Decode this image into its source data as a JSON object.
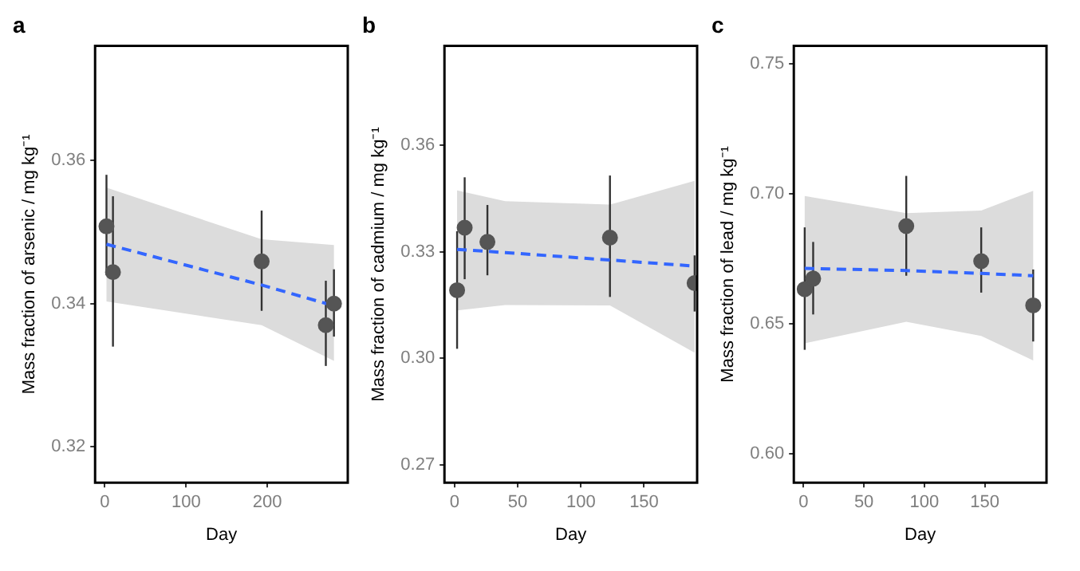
{
  "chart_data": [
    {
      "type": "scatter",
      "title": "a",
      "xlabel": "Day",
      "ylabel": "Mass fraction of arsenic / mg kg⁻¹",
      "xlim": [
        -12,
        299
      ],
      "xticks": [
        0,
        100,
        200
      ],
      "ylim": [
        0.315,
        0.376
      ],
      "yticks": [
        {
          "value": 0.32,
          "label": "0.32"
        },
        {
          "value": 0.34,
          "label": "0.34"
        },
        {
          "value": 0.36,
          "label": "0.36"
        }
      ],
      "series": [
        {
          "marker": "circle",
          "color": "#555555",
          "x": [
            2,
            10,
            193,
            272,
            282
          ],
          "values": [
            0.3508,
            0.3444,
            0.3459,
            0.337,
            0.34
          ],
          "errors": [
            [
              0.344,
              0.358
            ],
            [
              0.334,
              0.355
            ],
            [
              0.339,
              0.353
            ],
            [
              0.3313,
              0.3432
            ],
            [
              0.3354,
              0.3448
            ]
          ]
        },
        {
          "type": "line",
          "marker": "none",
          "line_style": "dashed",
          "color": "#3366ff",
          "x": [
            2,
            193,
            282
          ],
          "values": [
            0.3483,
            0.3426,
            0.3397
          ],
          "lower": [
            0.3403,
            0.337,
            0.332
          ],
          "upper": [
            0.3562,
            0.349,
            0.3482
          ]
        }
      ]
    },
    {
      "type": "scatter",
      "title": "b",
      "xlabel": "Day",
      "ylabel": "Mass fraction of cadmium / mg kg⁻¹",
      "xlim": [
        -8,
        192
      ],
      "xticks": [
        0,
        50,
        100,
        150
      ],
      "ylim": [
        0.265,
        0.388
      ],
      "yticks": [
        {
          "value": 0.27,
          "label": "0.27"
        },
        {
          "value": 0.3,
          "label": "0.30"
        },
        {
          "value": 0.33,
          "label": "0.33"
        },
        {
          "value": 0.36,
          "label": "0.36"
        }
      ],
      "series": [
        {
          "marker": "circle",
          "color": "#555555",
          "x": [
            2,
            8,
            26,
            123,
            190
          ],
          "values": [
            0.3192,
            0.3368,
            0.3328,
            0.334,
            0.3212
          ],
          "errors": [
            [
              0.3027,
              0.3358
            ],
            [
              0.3223,
              0.351
            ],
            [
              0.3234,
              0.3432
            ],
            [
              0.3173,
              0.3515
            ],
            [
              0.3132,
              0.329
            ]
          ]
        },
        {
          "type": "line",
          "marker": "none",
          "line_style": "dashed",
          "color": "#3366ff",
          "x": [
            2,
            40,
            123,
            190
          ],
          "values": [
            0.3307,
            0.3298,
            0.3277,
            0.326
          ],
          "lower": [
            0.3135,
            0.315,
            0.3149,
            0.3016
          ],
          "upper": [
            0.3473,
            0.3443,
            0.3433,
            0.35
          ]
        }
      ]
    },
    {
      "type": "scatter",
      "title": "c",
      "xlabel": "Day",
      "ylabel": "Mass fraction of lead / mg kg⁻¹",
      "xlim": [
        -8,
        201
      ],
      "xticks": [
        0,
        50,
        100,
        150
      ],
      "ylim": [
        0.589,
        0.757
      ],
      "yticks": [
        {
          "value": 0.6,
          "label": "0.60"
        },
        {
          "value": 0.65,
          "label": "0.65"
        },
        {
          "value": 0.7,
          "label": "0.70"
        },
        {
          "value": 0.75,
          "label": "0.75"
        }
      ],
      "series": [
        {
          "marker": "circle",
          "color": "#555555",
          "x": [
            1,
            8,
            85,
            147,
            190
          ],
          "values": [
            0.6634,
            0.6675,
            0.6877,
            0.6742,
            0.6572
          ],
          "errors": [
            [
              0.6401,
              0.6872
            ],
            [
              0.6537,
              0.6816
            ],
            [
              0.6686,
              0.707
            ],
            [
              0.6621,
              0.6872
            ],
            [
              0.6433,
              0.671
            ]
          ]
        },
        {
          "type": "line",
          "marker": "none",
          "line_style": "dashed",
          "color": "#3366ff",
          "x": [
            1,
            85,
            147,
            190
          ],
          "values": [
            0.6714,
            0.6706,
            0.6695,
            0.6686
          ],
          "lower": [
            0.6426,
            0.6509,
            0.6454,
            0.636
          ],
          "upper": [
            0.6993,
            0.6927,
            0.6937,
            0.7013
          ]
        }
      ]
    }
  ]
}
